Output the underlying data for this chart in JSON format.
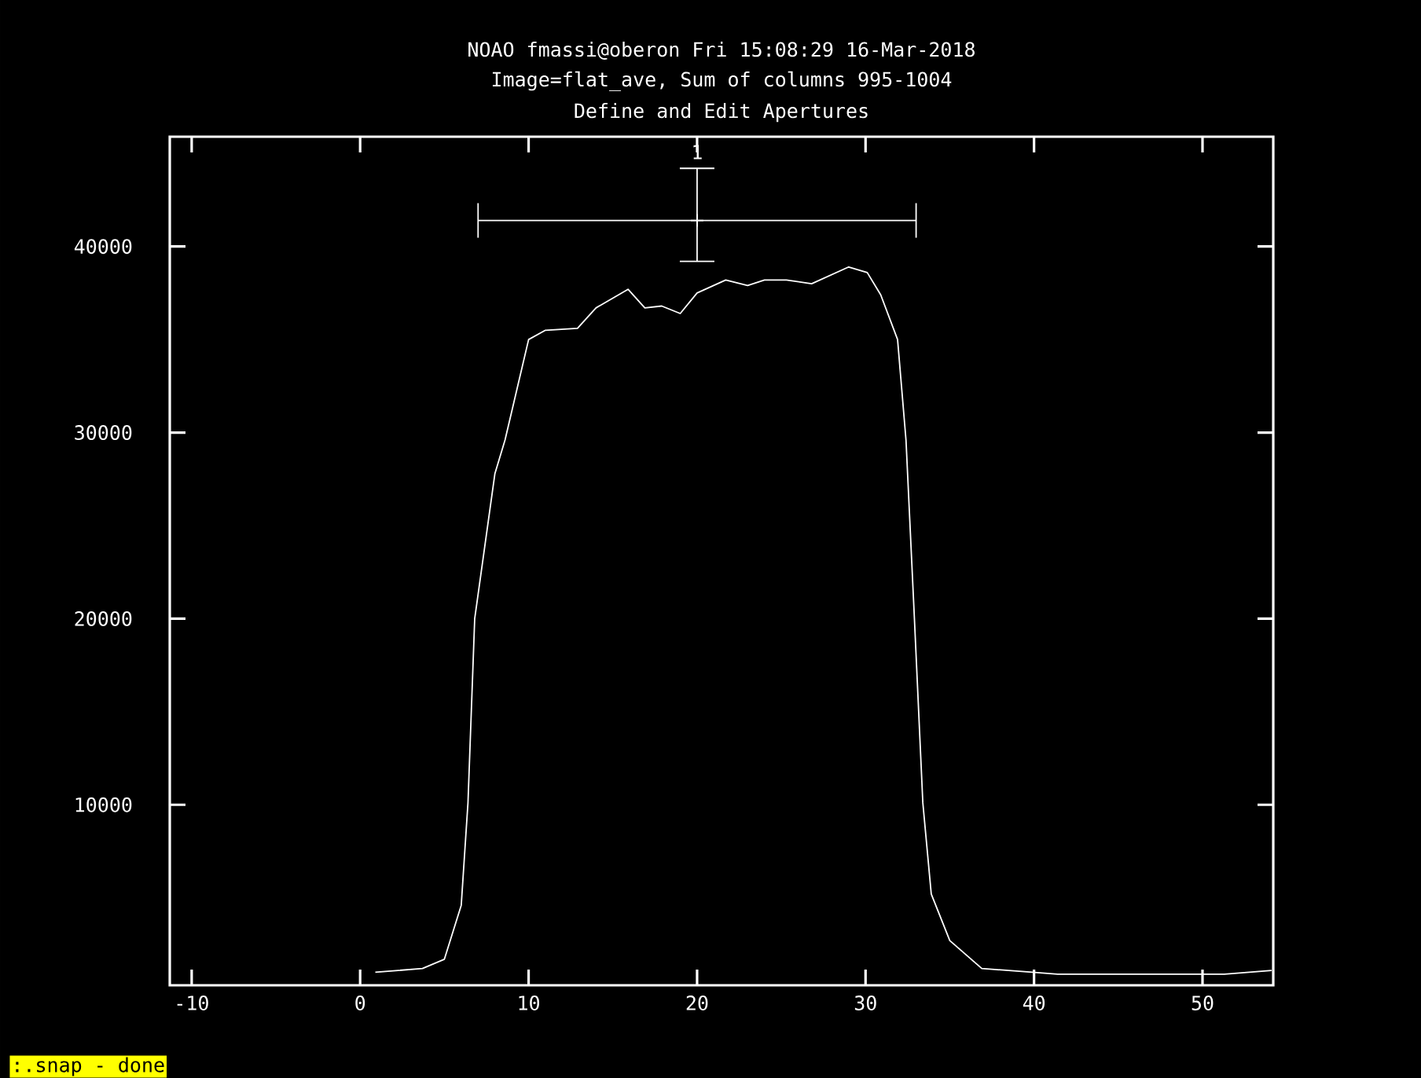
{
  "chart_data": {
    "type": "line",
    "title": "NOAO fmassi@oberon Fri 15:08:29 16-Mar-2018",
    "subtitle": "Image=flat_ave, Sum of columns 995-1004",
    "annotations": [
      "Define and Edit Apertures",
      ":.snap -  done",
      "1"
    ],
    "xlim": [
      -11.3,
      54.2
    ],
    "ylim": [
      300,
      45900
    ],
    "xticks": [
      -10,
      0,
      10,
      20,
      30,
      40,
      50
    ],
    "yticks": [
      10000,
      20000,
      30000,
      40000
    ],
    "series": [
      {
        "color": "#ffffff",
        "x": [
          0.9,
          3.7,
          5.0,
          6.0,
          6.4,
          6.8,
          8.0,
          8.6,
          10.0,
          11.0,
          12.9,
          14.0,
          15.9,
          16.9,
          17.9,
          19.0,
          20.0,
          21.7,
          23.0,
          24.0,
          25.3,
          26.8,
          29.0,
          30.1,
          30.9,
          31.9,
          32.4,
          32.9,
          33.4,
          33.9,
          35.0,
          36.9,
          39.9,
          41.4,
          51.3,
          54.1
        ],
        "values": [
          1000,
          1200,
          1700,
          4600,
          10100,
          20000,
          27800,
          29600,
          35000,
          35500,
          35600,
          36700,
          37700,
          36700,
          36800,
          36400,
          37500,
          38200,
          37900,
          38200,
          38200,
          38000,
          38900,
          38600,
          37400,
          35000,
          29600,
          20000,
          10100,
          5200,
          2700,
          1200,
          1000,
          900,
          900,
          1100
        ]
      },
      {
        "type": "scatter",
        "color": "#ffffff",
        "marker": "cross",
        "x": [
          20
        ],
        "values": [
          41400
        ],
        "xerrors": [
          [
            7,
            33
          ]
        ],
        "errors": [
          [
            39200,
            44200
          ]
        ]
      }
    ]
  }
}
